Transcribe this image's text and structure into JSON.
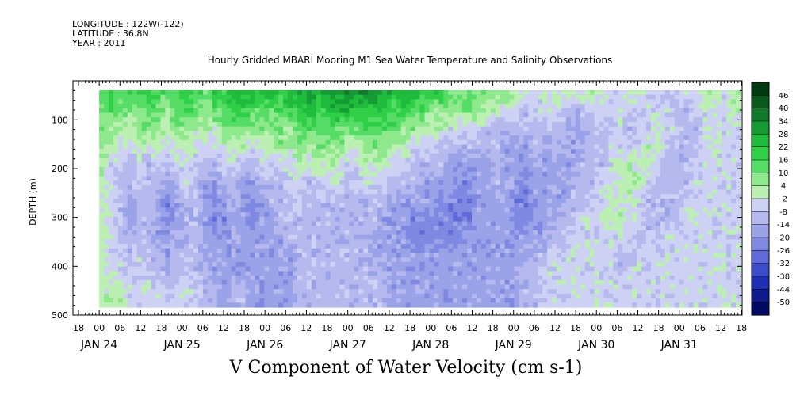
{
  "header": {
    "longitude": "LONGITUDE : 122W(-122)",
    "latitude": "LATITUDE : 36.8N",
    "year": "YEAR : 2011"
  },
  "chart_data": {
    "type": "heatmap",
    "title": "Hourly Gridded MBARI Mooring M1 Sea Water Temperature and Salinity Observations",
    "quantity_label": "V Component of Water Velocity (cm s-1)",
    "ylabel": "DEPTH (m)",
    "y_ticks": [
      100,
      200,
      300,
      400,
      500
    ],
    "ylim": [
      500,
      20
    ],
    "y_reversed": true,
    "x_start": "JAN 23 18:00",
    "x_end": "JAN 31 18:00",
    "x_hour_ticks": [
      "18",
      "00",
      "06",
      "12",
      "18",
      "00",
      "06",
      "12",
      "18",
      "00",
      "06",
      "12",
      "18",
      "00",
      "06",
      "12",
      "18",
      "00",
      "06",
      "12",
      "18",
      "00",
      "06",
      "12",
      "18",
      "00",
      "06",
      "12",
      "18",
      "00",
      "06",
      "12",
      "18"
    ],
    "x_date_labels": [
      "JAN 24",
      "JAN 25",
      "JAN 26",
      "JAN 27",
      "JAN 28",
      "JAN 29",
      "JAN 30",
      "JAN 31"
    ],
    "data_start": "JAN 24 00:00",
    "colorbar": {
      "levels": [
        46,
        40,
        34,
        28,
        22,
        16,
        10,
        4,
        -2,
        -8,
        -14,
        -20,
        -26,
        -32,
        -38,
        -44,
        -50
      ],
      "colors": [
        "#003a10",
        "#0a5a1e",
        "#107a2a",
        "#159a34",
        "#1fbb3d",
        "#2fd047",
        "#55dd66",
        "#8ee88c",
        "#bcf0b3",
        "#cdd1f3",
        "#b5b9ee",
        "#9aa2e8",
        "#7f89e1",
        "#606ad8",
        "#3c4dcb",
        "#1f2fb3",
        "#101b8e",
        "#000a60"
      ],
      "min": -50,
      "max": 52
    },
    "field": {
      "rows_top_to_bottom": [
        "G G G G F F G G G F G G F F E E E E E F E E D E D D D D D D D E E E F F F G G G H H H H I J J J I I J I I I J J I J J J K K J J I I J I",
        "H G G H H G G H G G G H G G F F G G G G F F E F F E E F F F F G F G G H H H H H H I I J J K J J J K K K J J J J J J J J J K K J J J J I",
        "H H I I H H H I H H I I I H H H H H H H H G G G G G G G G G G G H H I I I J J J J K K K K K K K K K L K K K K J K K J I J J K K J J J J",
        "H I J J I J I J I I J J J I I I J I I H I H I H H H I I H H H I I J J J K K K K K K K L L L K L K K L L K K J J J J I I J K K K J J J J",
        "I J J K J K J K J J J K K J J K K J J J J I J I I I J J I I I J J K K K K L L L L L K L L L L L L L L K K K J I I I I J K K K J J J J J",
        "I J K K J K K L K J K L L K K L L K K K J J K J J J K J J J J K K K L L L L M M L L K L L M L L L L K K K J J I I I J K K K K J J J J J",
        "I J K L K K L M L K K L M L K L M L K K K J K K K K K K K K K L L L L L M M M M L L L L M M L L L L K K J J I I I J K K K K J J J J J J",
        "I J K L K K L M L K K L M M L L M L L K K K K K K K K K K K L L L M M M M M M M L L L L M M L L L K K J J J I I J J K K K K J J J J J J",
        "I J K K K K L L L K K L L L L L L L L L K K K K K K K K K L L L L M M M M M M L L L L L L L L L K K J J J J J J J K K K J J J J J J J J",
        "I J J K J K K L K K K L L L L L L L L L L K K K K K K K K L L L L L L L L L L L L L L L L L K K J J J J J J J K K J J J J J J J J J J J",
        "I I J J J J K K K J K K L L L L L L L L L K K K K K K K K K L L L L L L L L L L L L L L L K K J J J J J J J J K J J J J J J J J J J J J",
        "I I I J J J J K J J J K K L K K L L L L L K K K K K K K K K K L L L L L L L L L L L L L L K K J J J J J J J J J J J J J J J J J J J J J"
      ],
      "legend_row_codes": "A B C D E F G H I J K L M N O P Q R"
    }
  }
}
